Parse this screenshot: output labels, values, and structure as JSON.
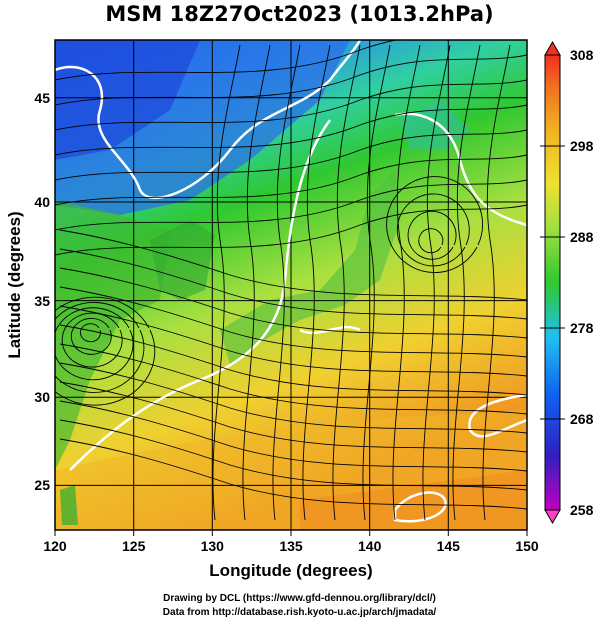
{
  "title": "MSM 18Z27Oct2023 (1013.2hPa)",
  "map": {
    "xlabel": "Longitude (degrees)",
    "ylabel": "Latitude  (degrees)",
    "lon_range": [
      120,
      150
    ],
    "lat_range": [
      22.4,
      47.6
    ],
    "x_ticks": [
      "120",
      "125",
      "130",
      "135",
      "140",
      "145",
      "150"
    ],
    "y_ticks": [
      "45",
      "40",
      "35",
      "30",
      "25"
    ]
  },
  "colorbar": {
    "range": [
      258,
      308
    ],
    "labels": [
      "308",
      "298",
      "288",
      "278",
      "268",
      "258"
    ],
    "colors": [
      "#ff40c0",
      "#c000c0",
      "#3020c0",
      "#1060f0",
      "#20c0f0",
      "#30e0a0",
      "#30c830",
      "#a0e040",
      "#f0e030",
      "#f0b020",
      "#f07020",
      "#f03020"
    ]
  },
  "credits": {
    "line1": "Drawing by DCL (https://www.gfd-dennou.org/library/dcl/)",
    "line2": "Data from http://database.rish.kyoto-u.ac.jp/arch/jmadata/"
  }
}
